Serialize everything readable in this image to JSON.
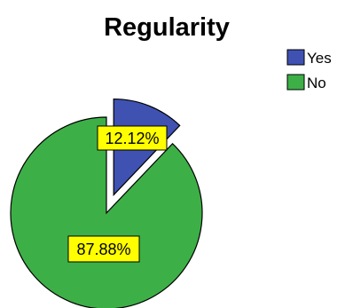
{
  "chart_data": {
    "type": "pie",
    "title": "Regularity",
    "slices": [
      {
        "label": "Yes",
        "value": 12.12,
        "display": "12.12%",
        "color": "#3F51B1",
        "exploded": true
      },
      {
        "label": "No",
        "value": 87.88,
        "display": "87.88%",
        "color": "#3DAF47",
        "exploded": false
      }
    ],
    "legend": {
      "position": "top-right",
      "entries": [
        "Yes",
        "No"
      ]
    },
    "data_label_background": "#FFFF00",
    "start_angle": "12 o'clock, clockwise"
  }
}
